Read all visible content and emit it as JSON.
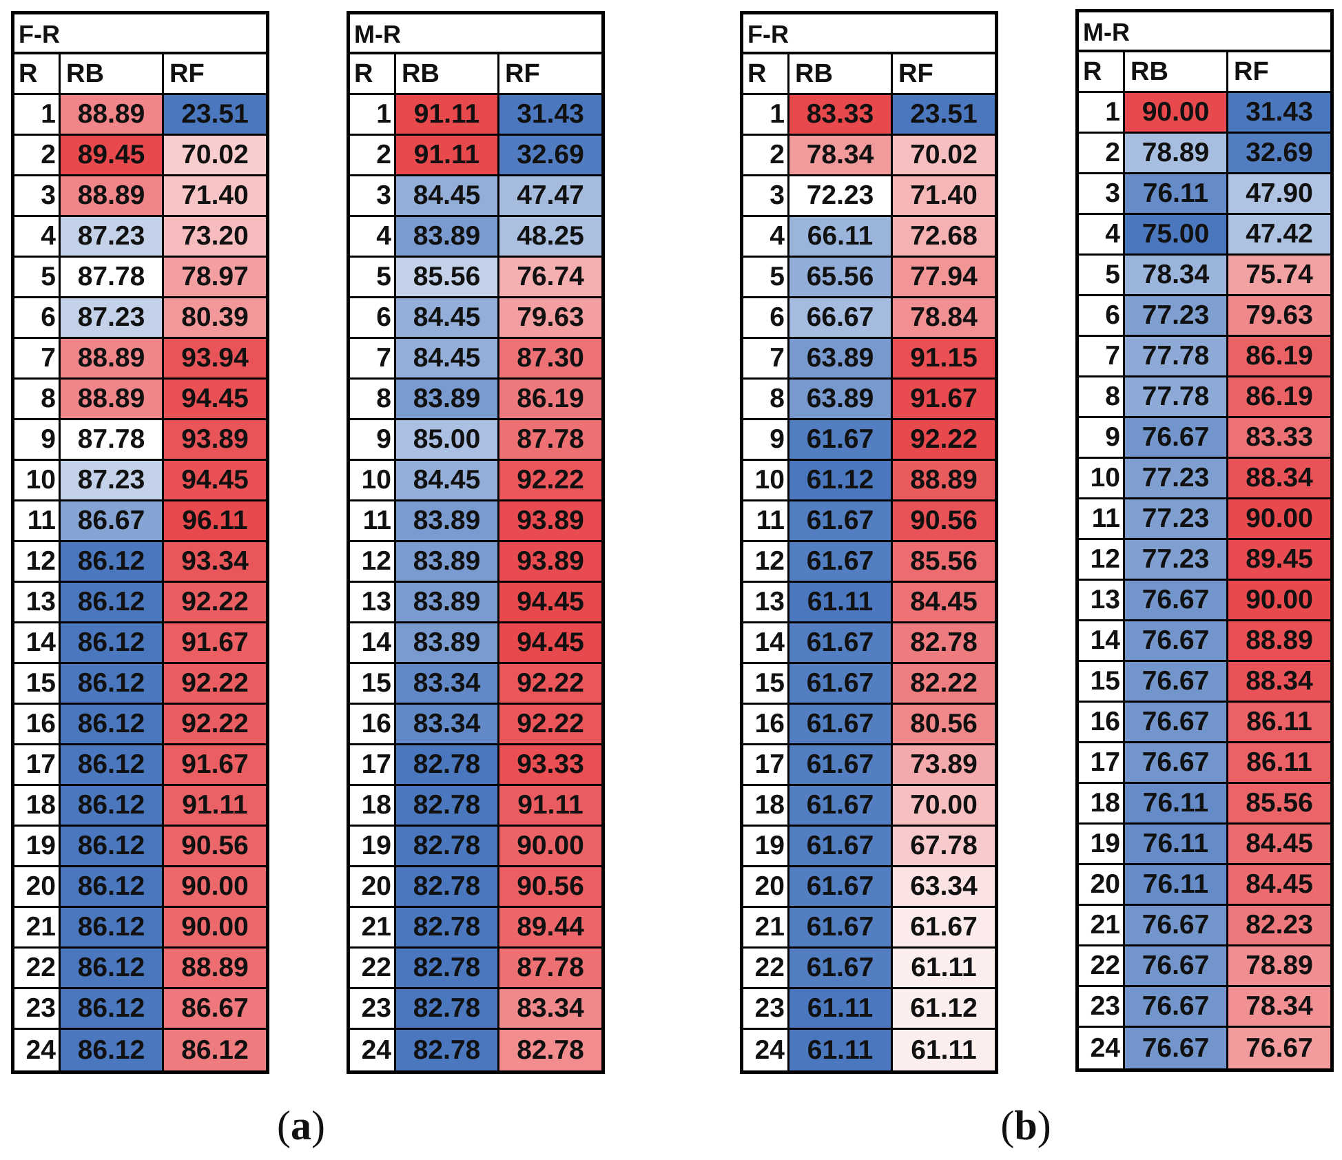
{
  "chart_data": [
    {
      "type": "table",
      "panel": "a",
      "title": "F-R",
      "columns": [
        "R",
        "RB",
        "RF"
      ],
      "rows": [
        [
          "1",
          "88.89",
          "23.51"
        ],
        [
          "2",
          "89.45",
          "70.02"
        ],
        [
          "3",
          "88.89",
          "71.40"
        ],
        [
          "4",
          "87.23",
          "73.20"
        ],
        [
          "5",
          "87.78",
          "78.97"
        ],
        [
          "6",
          "87.23",
          "80.39"
        ],
        [
          "7",
          "88.89",
          "93.94"
        ],
        [
          "8",
          "88.89",
          "94.45"
        ],
        [
          "9",
          "87.78",
          "93.89"
        ],
        [
          "10",
          "87.23",
          "94.45"
        ],
        [
          "11",
          "86.67",
          "96.11"
        ],
        [
          "12",
          "86.12",
          "93.34"
        ],
        [
          "13",
          "86.12",
          "92.22"
        ],
        [
          "14",
          "86.12",
          "91.67"
        ],
        [
          "15",
          "86.12",
          "92.22"
        ],
        [
          "16",
          "86.12",
          "92.22"
        ],
        [
          "17",
          "86.12",
          "91.67"
        ],
        [
          "18",
          "86.12",
          "91.11"
        ],
        [
          "19",
          "86.12",
          "90.56"
        ],
        [
          "20",
          "86.12",
          "90.00"
        ],
        [
          "21",
          "86.12",
          "90.00"
        ],
        [
          "22",
          "86.12",
          "88.89"
        ],
        [
          "23",
          "86.12",
          "86.67"
        ],
        [
          "24",
          "86.12",
          "86.12"
        ]
      ]
    },
    {
      "type": "table",
      "panel": "a",
      "title": "M-R",
      "columns": [
        "R",
        "RB",
        "RF"
      ],
      "rows": [
        [
          "1",
          "91.11",
          "31.43"
        ],
        [
          "2",
          "91.11",
          "32.69"
        ],
        [
          "3",
          "84.45",
          "47.47"
        ],
        [
          "4",
          "83.89",
          "48.25"
        ],
        [
          "5",
          "85.56",
          "76.74"
        ],
        [
          "6",
          "84.45",
          "79.63"
        ],
        [
          "7",
          "84.45",
          "87.30"
        ],
        [
          "8",
          "83.89",
          "86.19"
        ],
        [
          "9",
          "85.00",
          "87.78"
        ],
        [
          "10",
          "84.45",
          "92.22"
        ],
        [
          "11",
          "83.89",
          "93.89"
        ],
        [
          "12",
          "83.89",
          "93.89"
        ],
        [
          "13",
          "83.89",
          "94.45"
        ],
        [
          "14",
          "83.89",
          "94.45"
        ],
        [
          "15",
          "83.34",
          "92.22"
        ],
        [
          "16",
          "83.34",
          "92.22"
        ],
        [
          "17",
          "82.78",
          "93.33"
        ],
        [
          "18",
          "82.78",
          "91.11"
        ],
        [
          "19",
          "82.78",
          "90.00"
        ],
        [
          "20",
          "82.78",
          "90.56"
        ],
        [
          "21",
          "82.78",
          "89.44"
        ],
        [
          "22",
          "82.78",
          "87.78"
        ],
        [
          "23",
          "82.78",
          "83.34"
        ],
        [
          "24",
          "82.78",
          "82.78"
        ]
      ]
    },
    {
      "type": "table",
      "panel": "b",
      "title": "F-R",
      "columns": [
        "R",
        "RB",
        "RF"
      ],
      "rows": [
        [
          "1",
          "83.33",
          "23.51"
        ],
        [
          "2",
          "78.34",
          "70.02"
        ],
        [
          "3",
          "72.23",
          "71.40"
        ],
        [
          "4",
          "66.11",
          "72.68"
        ],
        [
          "5",
          "65.56",
          "77.94"
        ],
        [
          "6",
          "66.67",
          "78.84"
        ],
        [
          "7",
          "63.89",
          "91.15"
        ],
        [
          "8",
          "63.89",
          "91.67"
        ],
        [
          "9",
          "61.67",
          "92.22"
        ],
        [
          "10",
          "61.12",
          "88.89"
        ],
        [
          "11",
          "61.67",
          "90.56"
        ],
        [
          "12",
          "61.67",
          "85.56"
        ],
        [
          "13",
          "61.11",
          "84.45"
        ],
        [
          "14",
          "61.67",
          "82.78"
        ],
        [
          "15",
          "61.67",
          "82.22"
        ],
        [
          "16",
          "61.67",
          "80.56"
        ],
        [
          "17",
          "61.67",
          "73.89"
        ],
        [
          "18",
          "61.67",
          "70.00"
        ],
        [
          "19",
          "61.67",
          "67.78"
        ],
        [
          "20",
          "61.67",
          "63.34"
        ],
        [
          "21",
          "61.67",
          "61.67"
        ],
        [
          "22",
          "61.67",
          "61.11"
        ],
        [
          "23",
          "61.11",
          "61.12"
        ],
        [
          "24",
          "61.11",
          "61.11"
        ]
      ]
    },
    {
      "type": "table",
      "panel": "b",
      "title": "M-R",
      "columns": [
        "R",
        "RB",
        "RF"
      ],
      "rows": [
        [
          "1",
          "90.00",
          "31.43"
        ],
        [
          "2",
          "78.89",
          "32.69"
        ],
        [
          "3",
          "76.11",
          "47.90"
        ],
        [
          "4",
          "75.00",
          "47.42"
        ],
        [
          "5",
          "78.34",
          "75.74"
        ],
        [
          "6",
          "77.23",
          "79.63"
        ],
        [
          "7",
          "77.78",
          "86.19"
        ],
        [
          "8",
          "77.78",
          "86.19"
        ],
        [
          "9",
          "76.67",
          "83.33"
        ],
        [
          "10",
          "77.23",
          "88.34"
        ],
        [
          "11",
          "77.23",
          "90.00"
        ],
        [
          "12",
          "77.23",
          "89.45"
        ],
        [
          "13",
          "76.67",
          "90.00"
        ],
        [
          "14",
          "76.67",
          "88.89"
        ],
        [
          "15",
          "76.67",
          "88.34"
        ],
        [
          "16",
          "76.67",
          "86.11"
        ],
        [
          "17",
          "76.67",
          "86.11"
        ],
        [
          "18",
          "76.11",
          "85.56"
        ],
        [
          "19",
          "76.11",
          "84.45"
        ],
        [
          "20",
          "76.11",
          "84.45"
        ],
        [
          "21",
          "76.67",
          "82.23"
        ],
        [
          "22",
          "76.67",
          "78.89"
        ],
        [
          "23",
          "76.67",
          "78.34"
        ],
        [
          "24",
          "76.67",
          "76.67"
        ]
      ]
    }
  ],
  "colors": {
    "high": "#e8494d",
    "mid": "#ffffff",
    "low": "#4a77be"
  },
  "subfigure_labels": {
    "a": "(a)",
    "b": "(b)"
  }
}
